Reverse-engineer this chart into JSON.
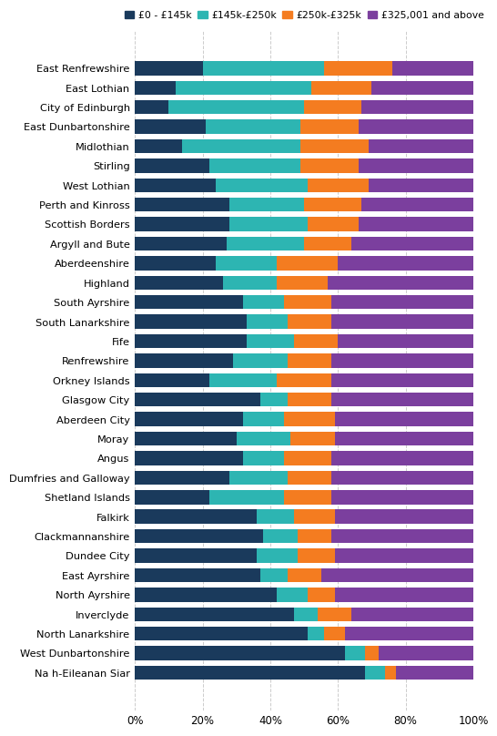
{
  "categories": [
    "East Renfrewshire",
    "East Lothian",
    "City of Edinburgh",
    "East Dunbartonshire",
    "Midlothian",
    "Stirling",
    "West Lothian",
    "Perth and Kinross",
    "Scottish Borders",
    "Argyll and Bute",
    "Aberdeenshire",
    "Highland",
    "South Ayrshire",
    "South Lanarkshire",
    "Fife",
    "Renfrewshire",
    "Orkney Islands",
    "Glasgow City",
    "Aberdeen City",
    "Moray",
    "Angus",
    "Dumfries and Galloway",
    "Shetland Islands",
    "Falkirk",
    "Clackmannanshire",
    "Dundee City",
    "East Ayrshire",
    "North Ayrshire",
    "Inverclyde",
    "North Lanarkshire",
    "West Dunbartonshire",
    "Na h-Eileanan Siar"
  ],
  "band1": [
    20,
    12,
    10,
    21,
    14,
    22,
    24,
    28,
    28,
    27,
    24,
    26,
    32,
    33,
    33,
    29,
    22,
    37,
    32,
    30,
    32,
    28,
    22,
    36,
    38,
    36,
    37,
    42,
    47,
    51,
    62,
    68
  ],
  "band2": [
    36,
    40,
    40,
    28,
    35,
    27,
    27,
    22,
    23,
    23,
    18,
    16,
    12,
    12,
    14,
    16,
    20,
    8,
    12,
    16,
    12,
    17,
    22,
    11,
    10,
    12,
    8,
    9,
    7,
    5,
    6,
    6
  ],
  "band3": [
    20,
    18,
    17,
    17,
    20,
    17,
    18,
    17,
    15,
    14,
    18,
    15,
    14,
    13,
    13,
    13,
    16,
    13,
    15,
    13,
    14,
    13,
    14,
    12,
    10,
    11,
    10,
    8,
    10,
    6,
    4,
    3
  ],
  "band4": [
    24,
    30,
    33,
    34,
    31,
    34,
    31,
    33,
    34,
    36,
    40,
    43,
    42,
    42,
    40,
    42,
    42,
    42,
    41,
    41,
    42,
    42,
    42,
    41,
    42,
    41,
    45,
    41,
    36,
    38,
    28,
    23
  ],
  "colors": [
    "#1a3a5c",
    "#2db5b2",
    "#f47c20",
    "#7b3f9e"
  ],
  "legend_labels": [
    "£0 - £145k",
    "£145k-£250k",
    "£250k-£325k",
    "£325,001 and above"
  ],
  "figsize": [
    5.55,
    8.3
  ],
  "dpi": 100
}
